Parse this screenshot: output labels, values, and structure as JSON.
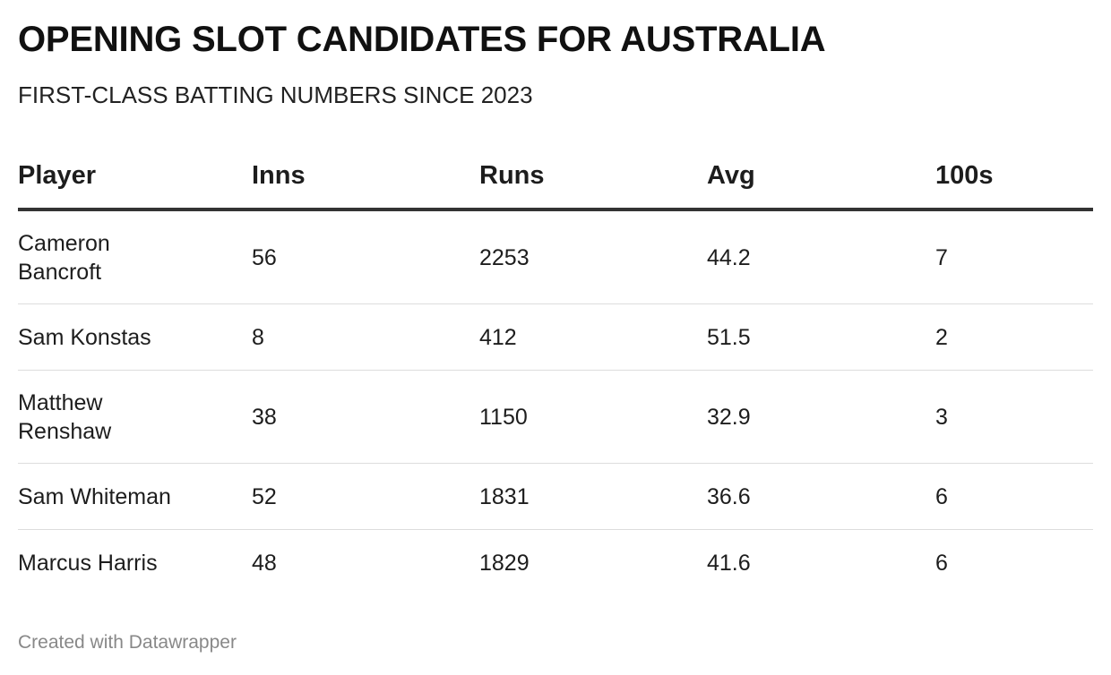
{
  "title": "OPENING SLOT CANDIDATES FOR AUSTRALIA",
  "subtitle": "FIRST-CLASS BATTING NUMBERS SINCE 2023",
  "footer": "Created with Datawrapper",
  "chart_data": {
    "type": "table",
    "title": "OPENING SLOT CANDIDATES FOR AUSTRALIA",
    "subtitle": "FIRST-CLASS BATTING NUMBERS SINCE 2023",
    "columns": [
      "Player",
      "Inns",
      "Runs",
      "Avg",
      "100s"
    ],
    "rows": [
      {
        "player": "Cameron Bancroft",
        "inns": "56",
        "runs": "2253",
        "avg": "44.2",
        "hundreds": "7"
      },
      {
        "player": "Sam Konstas",
        "inns": "8",
        "runs": "412",
        "avg": "51.5",
        "hundreds": "2"
      },
      {
        "player": "Matthew Renshaw",
        "inns": "38",
        "runs": "1150",
        "avg": "32.9",
        "hundreds": "3"
      },
      {
        "player": "Sam Whiteman",
        "inns": "52",
        "runs": "1831",
        "avg": "36.6",
        "hundreds": "6"
      },
      {
        "player": "Marcus Harris",
        "inns": "48",
        "runs": "1829",
        "avg": "41.6",
        "hundreds": "6"
      }
    ]
  }
}
